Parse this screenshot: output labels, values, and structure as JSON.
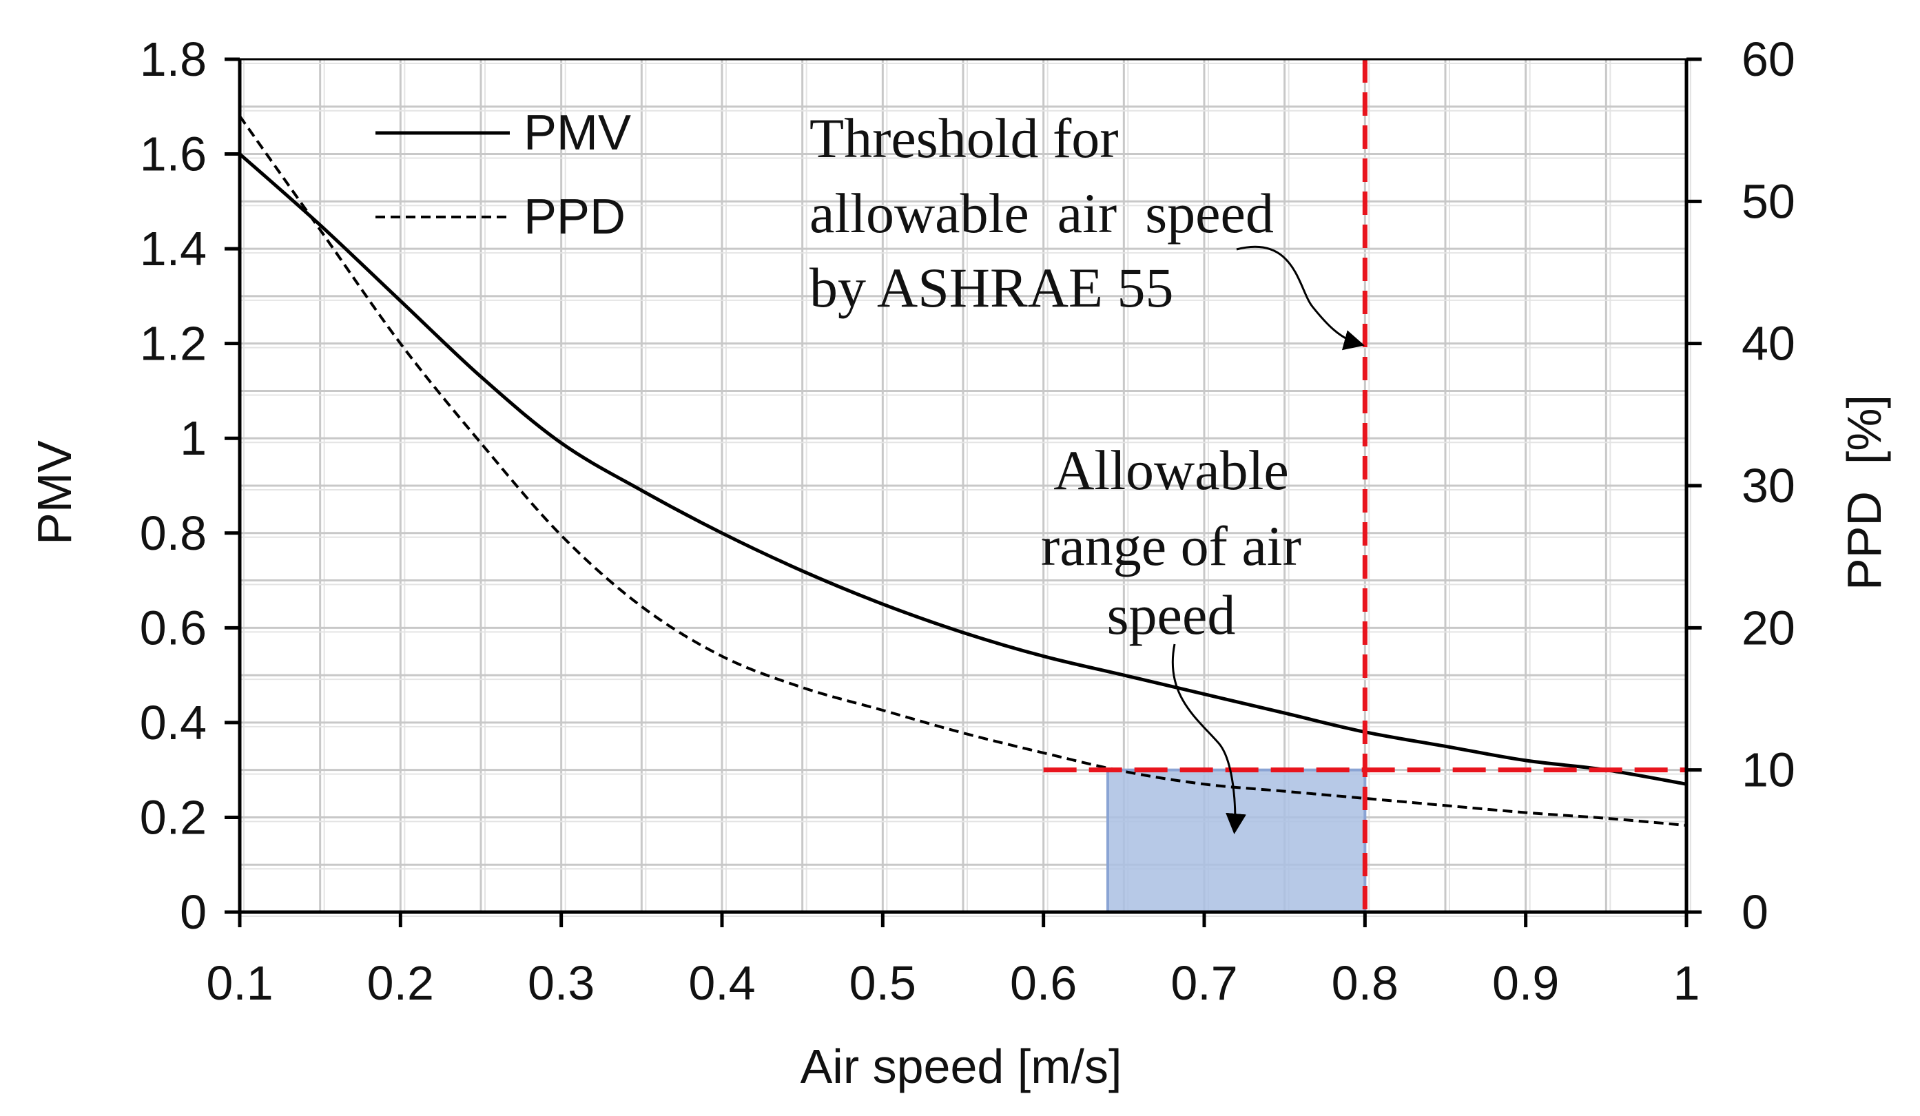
{
  "chart_data": {
    "type": "line",
    "xlabel": "Air speed [m/s]",
    "ylabel": "PMV",
    "y2label": "PPD  [%]",
    "xlim": [
      0.1,
      1.0
    ],
    "ylim": [
      0,
      1.8
    ],
    "y2lim": [
      0,
      60
    ],
    "grid": true,
    "legend_position": "top-left",
    "x_ticks": [
      0.1,
      0.2,
      0.3,
      0.4,
      0.5,
      0.6,
      0.7,
      0.8,
      0.9,
      1.0
    ],
    "x_tick_labels": [
      "0.1",
      "0.2",
      "0.3",
      "0.4",
      "0.5",
      "0.6",
      "0.7",
      "0.8",
      "0.9",
      "1"
    ],
    "y_ticks": [
      0,
      0.2,
      0.4,
      0.6,
      0.8,
      1.0,
      1.2,
      1.4,
      1.6,
      1.8
    ],
    "y_tick_labels": [
      "0",
      "0.2",
      "0.4",
      "0.6",
      "0.8",
      "1",
      "1.2",
      "1.4",
      "1.6",
      "1.8"
    ],
    "y2_ticks": [
      0,
      10,
      20,
      30,
      40,
      50,
      60
    ],
    "y2_tick_labels": [
      "0",
      "10",
      "20",
      "30",
      "40",
      "50",
      "60"
    ],
    "series": [
      {
        "name": "PMV",
        "axis": "left",
        "style": "solid",
        "color": "#000000",
        "x": [
          0.1,
          0.15,
          0.2,
          0.25,
          0.3,
          0.35,
          0.4,
          0.45,
          0.5,
          0.55,
          0.6,
          0.65,
          0.7,
          0.75,
          0.8,
          0.85,
          0.9,
          0.95,
          1.0
        ],
        "values": [
          1.6,
          1.45,
          1.29,
          1.13,
          0.99,
          0.89,
          0.8,
          0.72,
          0.65,
          0.59,
          0.54,
          0.5,
          0.46,
          0.42,
          0.38,
          0.35,
          0.32,
          0.3,
          0.27
        ]
      },
      {
        "name": "PPD",
        "axis": "right",
        "style": "dashed",
        "color": "#000000",
        "x": [
          0.1,
          0.15,
          0.2,
          0.25,
          0.3,
          0.35,
          0.4,
          0.45,
          0.5,
          0.55,
          0.6,
          0.65,
          0.7,
          0.75,
          0.8,
          0.85,
          0.9,
          0.95,
          1.0
        ],
        "values": [
          56,
          48,
          40,
          33,
          26.5,
          21.5,
          18,
          15.8,
          14.2,
          12.6,
          11.2,
          9.9,
          9.0,
          8.5,
          8.0,
          7.5,
          7.0,
          6.6,
          6.1
        ]
      }
    ],
    "threshold_lines": {
      "color": "#e8141d",
      "vertical_x": 0.8,
      "horizontal_ppd": 10,
      "horizontal_x_range": [
        0.6,
        1.0
      ]
    },
    "allowable_range": {
      "x_range": [
        0.64,
        0.8
      ],
      "ppd_range": [
        0,
        10
      ],
      "fill": "#aabfe3",
      "stroke": "#8aa4d4"
    },
    "annotations": [
      {
        "id": "threshold",
        "lines": [
          "Threshold for",
          "allowable  air  speed",
          "by ASHRAE 55"
        ],
        "target_x": 0.8,
        "target_ppd": 40
      },
      {
        "id": "range",
        "lines": [
          "Allowable",
          "range of air",
          "speed"
        ],
        "target_x": 0.72,
        "target_ppd": 5
      }
    ]
  }
}
